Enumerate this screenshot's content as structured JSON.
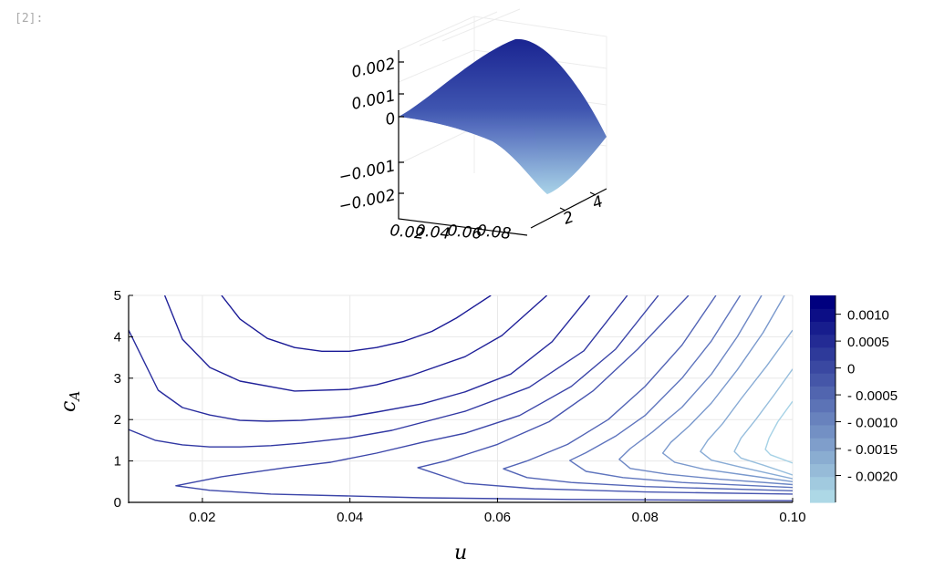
{
  "cell": {
    "prompt": "[2]:"
  },
  "chart_data": [
    {
      "type": "surface",
      "title": "",
      "x_ticks": [
        "0.02",
        "0.04",
        "0.06",
        "0.08"
      ],
      "y_ticks": [
        "2",
        "4"
      ],
      "z_ticks": [
        "0.002",
        "0.001",
        "0",
        "−0.001",
        "−0.002"
      ],
      "colors": {
        "high": "#1a2491",
        "low": "#a9d3e8"
      }
    },
    {
      "type": "contour",
      "title": "",
      "xlabel": "u",
      "ylabel": "c",
      "ylabel_sub": "A",
      "xlim": [
        0.01,
        0.1
      ],
      "ylim": [
        0,
        5
      ],
      "x_ticks": [
        {
          "v": 0.02,
          "label": "0.02"
        },
        {
          "v": 0.04,
          "label": "0.04"
        },
        {
          "v": 0.06,
          "label": "0.06"
        },
        {
          "v": 0.08,
          "label": "0.08"
        },
        {
          "v": 0.1,
          "label": "0.10"
        }
      ],
      "y_ticks": [
        {
          "v": 0,
          "label": "0"
        },
        {
          "v": 1,
          "label": "1"
        },
        {
          "v": 2,
          "label": "2"
        },
        {
          "v": 3,
          "label": "3"
        },
        {
          "v": 4,
          "label": "4"
        },
        {
          "v": 5,
          "label": "5"
        }
      ],
      "grid": true,
      "colorbar": {
        "clim": [
          -0.0025,
          0.00135
        ],
        "bands": 16,
        "colors": {
          "high": "#00007f",
          "low": "#add8e6"
        },
        "ticks": [
          {
            "v": 0.001,
            "label": "0.0010"
          },
          {
            "v": 0.0005,
            "label": "0.0005"
          },
          {
            "v": 0,
            "label": "0"
          },
          {
            "v": -0.0005,
            "label": "- 0.0005"
          },
          {
            "v": -0.001,
            "label": "- 0.0010"
          },
          {
            "v": -0.0015,
            "label": "- 0.0015"
          },
          {
            "v": -0.002,
            "label": "- 0.0020"
          }
        ]
      },
      "contours": [
        {
          "upper": [
            [
              0.0226,
              5.0
            ],
            [
              0.0251,
              4.43
            ],
            [
              0.0288,
              3.96
            ],
            [
              0.0325,
              3.74
            ],
            [
              0.0362,
              3.65
            ],
            [
              0.0399,
              3.65
            ],
            [
              0.0436,
              3.74
            ],
            [
              0.0473,
              3.89
            ],
            [
              0.0511,
              4.13
            ],
            [
              0.0544,
              4.45
            ],
            [
              0.0591,
              5.0
            ]
          ]
        },
        {
          "upper": [
            [
              0.0149,
              5.0
            ],
            [
              0.0173,
              3.94
            ],
            [
              0.021,
              3.26
            ],
            [
              0.0251,
              2.93
            ],
            [
              0.0325,
              2.69
            ],
            [
              0.0399,
              2.73
            ],
            [
              0.0436,
              2.84
            ],
            [
              0.0482,
              3.06
            ],
            [
              0.0556,
              3.52
            ],
            [
              0.0606,
              4.03
            ],
            [
              0.0667,
              5.0
            ]
          ]
        },
        {
          "upper": [
            [
              0.01,
              4.16
            ],
            [
              0.014,
              2.71
            ],
            [
              0.0173,
              2.29
            ],
            [
              0.021,
              2.11
            ],
            [
              0.0251,
              1.98
            ],
            [
              0.0288,
              1.96
            ],
            [
              0.0334,
              1.98
            ],
            [
              0.0399,
              2.07
            ],
            [
              0.0436,
              2.18
            ],
            [
              0.0498,
              2.38
            ],
            [
              0.0556,
              2.67
            ],
            [
              0.0618,
              3.1
            ],
            [
              0.0674,
              3.88
            ],
            [
              0.0725,
              5.0
            ]
          ]
        },
        {
          "upper": [
            [
              0.01,
              1.76
            ],
            [
              0.0136,
              1.5
            ],
            [
              0.0173,
              1.39
            ],
            [
              0.021,
              1.34
            ],
            [
              0.0251,
              1.34
            ],
            [
              0.0293,
              1.37
            ],
            [
              0.0334,
              1.43
            ],
            [
              0.0399,
              1.56
            ],
            [
              0.0457,
              1.74
            ],
            [
              0.0556,
              2.2
            ],
            [
              0.0643,
              2.78
            ],
            [
              0.0717,
              3.66
            ],
            [
              0.0776,
              5.0
            ]
          ]
        },
        {
          "upper": [
            [
              0.0164,
              0.4
            ],
            [
              0.0226,
              0.62
            ],
            [
              0.0313,
              0.84
            ],
            [
              0.0374,
              0.97
            ],
            [
              0.0436,
              1.19
            ],
            [
              0.0498,
              1.45
            ],
            [
              0.0556,
              1.67
            ],
            [
              0.063,
              2.1
            ],
            [
              0.07,
              2.8
            ],
            [
              0.076,
              3.7
            ],
            [
              0.0818,
              5.0
            ]
          ],
          "lower": [
            [
              0.0164,
              0.4
            ],
            [
              0.021,
              0.29
            ],
            [
              0.0293,
              0.2
            ],
            [
              0.0498,
              0.11
            ],
            [
              0.07,
              0.07
            ],
            [
              0.1,
              0.04
            ]
          ]
        },
        {
          "upper": [
            [
              0.0492,
              0.84
            ],
            [
              0.053,
              1.0
            ],
            [
              0.06,
              1.4
            ],
            [
              0.067,
              1.95
            ],
            [
              0.073,
              2.7
            ],
            [
              0.079,
              3.7
            ],
            [
              0.0859,
              5.0
            ]
          ],
          "lower": [
            [
              0.0492,
              0.84
            ],
            [
              0.0556,
              0.46
            ],
            [
              0.065,
              0.33
            ],
            [
              0.08,
              0.25
            ],
            [
              0.1,
              0.2
            ]
          ]
        },
        {
          "upper": [
            [
              0.0608,
              0.81
            ],
            [
              0.064,
              1.0
            ],
            [
              0.0695,
              1.4
            ],
            [
              0.075,
              2.0
            ],
            [
              0.08,
              2.8
            ],
            [
              0.085,
              3.8
            ],
            [
              0.0896,
              5.0
            ]
          ],
          "lower": [
            [
              0.0608,
              0.81
            ],
            [
              0.064,
              0.6
            ],
            [
              0.07,
              0.48
            ],
            [
              0.08,
              0.38
            ],
            [
              0.1,
              0.28
            ]
          ]
        },
        {
          "upper": [
            [
              0.0698,
              1.01
            ],
            [
              0.072,
              1.2
            ],
            [
              0.076,
              1.6
            ],
            [
              0.08,
              2.1
            ],
            [
              0.085,
              3.0
            ],
            [
              0.089,
              3.9
            ],
            [
              0.0929,
              5.0
            ]
          ],
          "lower": [
            [
              0.0698,
              1.01
            ],
            [
              0.072,
              0.75
            ],
            [
              0.077,
              0.6
            ],
            [
              0.085,
              0.48
            ],
            [
              0.1,
              0.36
            ]
          ]
        },
        {
          "upper": [
            [
              0.0765,
              1.04
            ],
            [
              0.078,
              1.3
            ],
            [
              0.081,
              1.7
            ],
            [
              0.085,
              2.3
            ],
            [
              0.089,
              3.1
            ],
            [
              0.0925,
              4.0
            ],
            [
              0.0958,
              5.0
            ]
          ],
          "lower": [
            [
              0.0765,
              1.04
            ],
            [
              0.078,
              0.82
            ],
            [
              0.083,
              0.68
            ],
            [
              0.09,
              0.56
            ],
            [
              0.1,
              0.43
            ]
          ]
        },
        {
          "upper": [
            [
              0.0824,
              1.19
            ],
            [
              0.0835,
              1.45
            ],
            [
              0.086,
              1.85
            ],
            [
              0.089,
              2.4
            ],
            [
              0.0925,
              3.2
            ],
            [
              0.096,
              4.1
            ],
            [
              0.0989,
              5.0
            ]
          ],
          "lower": [
            [
              0.0824,
              1.19
            ],
            [
              0.084,
              0.97
            ],
            [
              0.088,
              0.8
            ],
            [
              0.094,
              0.65
            ],
            [
              0.1,
              0.5
            ]
          ]
        },
        {
          "upper": [
            [
              0.0875,
              1.23
            ],
            [
              0.0885,
              1.5
            ],
            [
              0.0905,
              1.9
            ],
            [
              0.093,
              2.5
            ],
            [
              0.0965,
              3.3
            ],
            [
              0.1,
              4.16
            ]
          ],
          "lower": [
            [
              0.0875,
              1.23
            ],
            [
              0.089,
              1.02
            ],
            [
              0.093,
              0.85
            ],
            [
              0.1,
              0.57
            ]
          ]
        },
        {
          "upper": [
            [
              0.0921,
              1.23
            ],
            [
              0.093,
              1.55
            ],
            [
              0.095,
              2.0
            ],
            [
              0.0975,
              2.6
            ],
            [
              0.1,
              3.22
            ]
          ],
          "lower": [
            [
              0.0921,
              1.23
            ],
            [
              0.093,
              1.07
            ],
            [
              0.096,
              0.9
            ],
            [
              0.1,
              0.66
            ]
          ]
        },
        {
          "upper": [
            [
              0.0963,
              1.28
            ],
            [
              0.0968,
              1.55
            ],
            [
              0.098,
              1.95
            ],
            [
              0.1,
              2.44
            ]
          ],
          "lower": [
            [
              0.0963,
              1.28
            ],
            [
              0.097,
              1.15
            ],
            [
              0.1,
              0.95
            ]
          ]
        }
      ],
      "line_colors": {
        "first": "#1a1a96",
        "last": "#a6d2e6"
      }
    }
  ]
}
